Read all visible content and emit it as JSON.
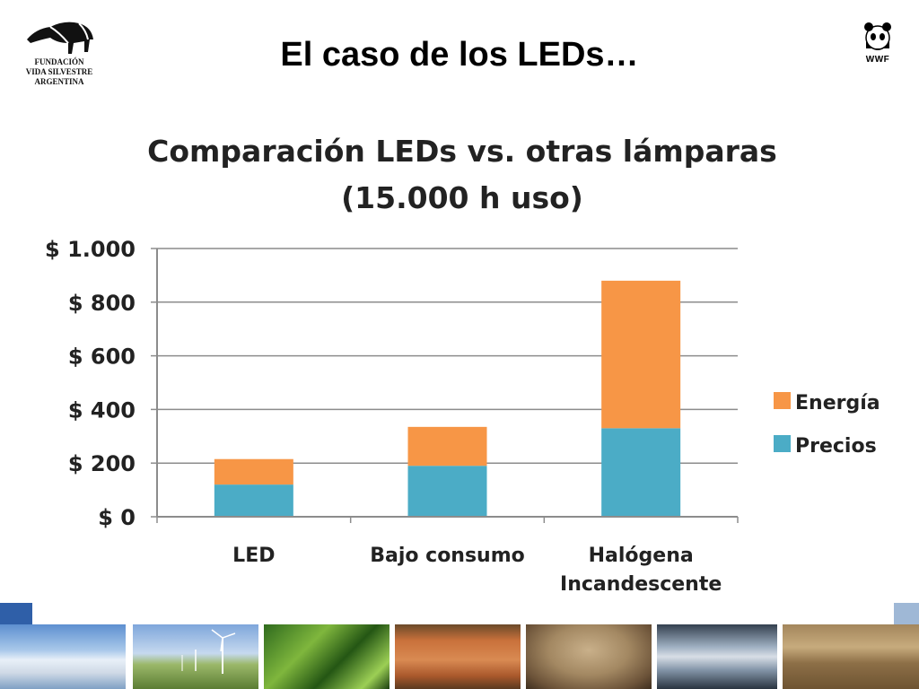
{
  "header": {
    "title": "El caso de los LEDs…",
    "org_lines": [
      "FUNDACIÓN",
      "VIDA SILVESTRE",
      "ARGENTINA"
    ],
    "partner_logo_text": "WWF"
  },
  "chart_data": {
    "type": "bar",
    "stacked": true,
    "title": "Comparación LEDs vs. otras lámparas",
    "subtitle": "(15.000 h uso)",
    "categories": [
      "LED",
      "Bajo consumo",
      "Halógena Incandescente"
    ],
    "category_lines": [
      [
        "LED"
      ],
      [
        "Bajo consumo"
      ],
      [
        "Halógena",
        "Incandescente"
      ]
    ],
    "series": [
      {
        "name": "Precios",
        "values": [
          120,
          190,
          330
        ],
        "color": "#4bacc6"
      },
      {
        "name": "Energía",
        "values": [
          95,
          145,
          550
        ],
        "color": "#f79646"
      }
    ],
    "yticks": [
      0,
      200,
      400,
      600,
      800,
      1000
    ],
    "ytick_labels": [
      "$ 0",
      "$ 200",
      "$ 400",
      "$ 600",
      "$ 800",
      "$ 1.000"
    ],
    "ylim": [
      0,
      1000
    ],
    "grid": true,
    "legend_position": "right"
  },
  "footer": {
    "photos": [
      "glacier",
      "wind-turbines",
      "ferns",
      "tree-trunk",
      "seal",
      "fish",
      "dry-land"
    ]
  }
}
